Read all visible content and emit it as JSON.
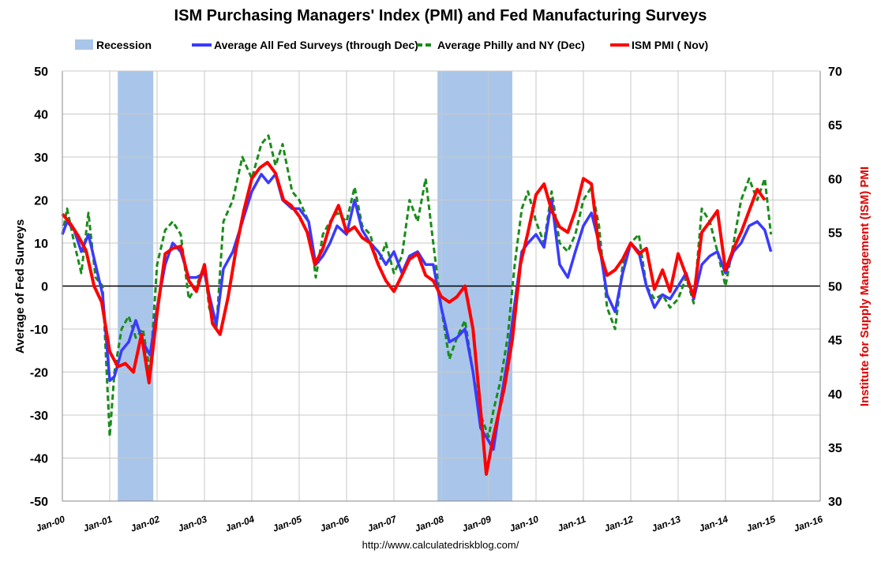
{
  "chart_data": {
    "type": "line",
    "title": "ISM Purchasing Managers' Index (PMI) and Fed Manufacturing Surveys",
    "ylabel": "Average of Fed Surveys",
    "y2label": "Institute for Supply Management (ISM) PMI",
    "source": "http://www.calculatedriskblog.com/",
    "ylim": [
      -50,
      50
    ],
    "y2lim": [
      30,
      70
    ],
    "xlim": [
      2000,
      2016
    ],
    "yticks": [
      "50",
      "40",
      "30",
      "20",
      "10",
      "0",
      "-10",
      "-20",
      "-30",
      "-40",
      "-50"
    ],
    "y2ticks": [
      "70",
      "65",
      "60",
      "55",
      "50",
      "45",
      "40",
      "35",
      "30"
    ],
    "xticks": [
      "Jan-00",
      "Jan-01",
      "Jan-02",
      "Jan-03",
      "Jan-04",
      "Jan-05",
      "Jan-06",
      "Jan-07",
      "Jan-08",
      "Jan-09",
      "Jan-10",
      "Jan-11",
      "Jan-12",
      "Jan-13",
      "Jan-14",
      "Jan-15",
      "Jan-16"
    ],
    "grid": true,
    "legend_position": "top",
    "legend": [
      "Recession",
      "Average All Fed Surveys (through Dec)",
      "Average Philly and NY (Dec)",
      "ISM PMI ( Nov)"
    ],
    "recessions": [
      [
        2001.17,
        2001.92
      ],
      [
        2007.92,
        2009.5
      ]
    ],
    "colors": {
      "recession": "#a9c6ea",
      "fed": "#3a3aff",
      "philly": "#1a8c1a",
      "ism": "#ff0000"
    },
    "series": [
      {
        "name": "Average All Fed Surveys (through Dec)",
        "axis": "left",
        "x": [
          2000,
          2000.1,
          2000.25,
          2000.4,
          2000.55,
          2000.7,
          2000.85,
          2001,
          2001.1,
          2001.25,
          2001.4,
          2001.55,
          2001.7,
          2001.85,
          2002,
          2002.17,
          2002.33,
          2002.5,
          2002.67,
          2002.83,
          2003,
          2003.1,
          2003.25,
          2003.4,
          2003.6,
          2003.8,
          2004,
          2004.2,
          2004.35,
          2004.5,
          2004.65,
          2004.85,
          2005,
          2005.2,
          2005.35,
          2005.5,
          2005.65,
          2005.8,
          2006,
          2006.17,
          2006.33,
          2006.5,
          2006.67,
          2006.83,
          2007,
          2007.17,
          2007.33,
          2007.5,
          2007.67,
          2007.83,
          2008,
          2008.17,
          2008.33,
          2008.5,
          2008.67,
          2008.83,
          2009,
          2009.1,
          2009.25,
          2009.4,
          2009.55,
          2009.7,
          2009.83,
          2010,
          2010.17,
          2010.33,
          2010.5,
          2010.67,
          2010.83,
          2011,
          2011.17,
          2011.33,
          2011.5,
          2011.67,
          2011.83,
          2012,
          2012.17,
          2012.33,
          2012.5,
          2012.67,
          2012.83,
          2013,
          2013.17,
          2013.33,
          2013.5,
          2013.67,
          2013.83,
          2014,
          2014.17,
          2014.33,
          2014.5,
          2014.67,
          2014.83,
          2014.96
        ],
        "y": [
          12,
          15,
          13,
          8,
          12,
          5,
          -2,
          -22,
          -21,
          -15,
          -13,
          -8,
          -13,
          -16,
          -5,
          5,
          10,
          8,
          2,
          2,
          3,
          -2,
          -9,
          4,
          8,
          15,
          22,
          26,
          24,
          26,
          20,
          18,
          18,
          15,
          5,
          7,
          10,
          14,
          12,
          20,
          13,
          10,
          8,
          5,
          8,
          3,
          7,
          8,
          5,
          5,
          -5,
          -13,
          -12,
          -10,
          -20,
          -33,
          -36,
          -38,
          -27,
          -17,
          -4,
          8,
          10,
          12,
          9,
          20,
          5,
          2,
          8,
          14,
          17,
          10,
          -2,
          -6,
          3,
          10,
          8,
          0,
          -5,
          -2,
          -3,
          0,
          3,
          -3,
          5,
          7,
          8,
          3,
          8,
          10,
          14,
          15,
          13,
          8
        ]
      },
      {
        "name": "Average Philly and NY (Dec)",
        "axis": "left",
        "x": [
          2000,
          2000.1,
          2000.25,
          2000.4,
          2000.55,
          2000.7,
          2000.85,
          2001,
          2001.1,
          2001.25,
          2001.4,
          2001.55,
          2001.7,
          2001.85,
          2002,
          2002.17,
          2002.33,
          2002.5,
          2002.67,
          2002.83,
          2003,
          2003.1,
          2003.25,
          2003.4,
          2003.6,
          2003.8,
          2004,
          2004.2,
          2004.35,
          2004.5,
          2004.65,
          2004.85,
          2005,
          2005.2,
          2005.35,
          2005.5,
          2005.65,
          2005.8,
          2006,
          2006.17,
          2006.33,
          2006.5,
          2006.67,
          2006.83,
          2007,
          2007.17,
          2007.33,
          2007.5,
          2007.67,
          2007.83,
          2008,
          2008.17,
          2008.33,
          2008.5,
          2008.67,
          2008.83,
          2009,
          2009.1,
          2009.25,
          2009.4,
          2009.55,
          2009.7,
          2009.83,
          2010,
          2010.17,
          2010.33,
          2010.5,
          2010.67,
          2010.83,
          2011,
          2011.17,
          2011.33,
          2011.5,
          2011.67,
          2011.83,
          2012,
          2012.17,
          2012.33,
          2012.5,
          2012.67,
          2012.83,
          2013,
          2013.17,
          2013.33,
          2013.5,
          2013.67,
          2013.83,
          2014,
          2014.17,
          2014.33,
          2014.5,
          2014.67,
          2014.83,
          2014.96
        ],
        "y": [
          12,
          18,
          10,
          3,
          17,
          2,
          0,
          -35,
          -20,
          -10,
          -7,
          -12,
          -10,
          -20,
          5,
          13,
          15,
          12,
          -3,
          0,
          5,
          -5,
          -10,
          15,
          20,
          30,
          25,
          33,
          35,
          28,
          33,
          22,
          20,
          15,
          2,
          12,
          15,
          17,
          15,
          23,
          14,
          12,
          5,
          10,
          3,
          7,
          20,
          15,
          25,
          10,
          -5,
          -17,
          -12,
          -8,
          -20,
          -30,
          -35,
          -29,
          -22,
          -12,
          5,
          18,
          22,
          15,
          10,
          22,
          10,
          8,
          12,
          20,
          23,
          14,
          -5,
          -10,
          5,
          10,
          12,
          0,
          -3,
          -2,
          -5,
          -3,
          2,
          -4,
          18,
          15,
          8,
          0,
          10,
          20,
          25,
          20,
          25,
          12
        ]
      },
      {
        "name": "ISM PMI ( Nov)",
        "axis": "right",
        "x": [
          2000,
          2000.17,
          2000.33,
          2000.5,
          2000.67,
          2000.83,
          2001,
          2001.17,
          2001.33,
          2001.5,
          2001.67,
          2001.83,
          2002,
          2002.17,
          2002.33,
          2002.5,
          2002.67,
          2002.83,
          2003,
          2003.17,
          2003.33,
          2003.5,
          2003.67,
          2003.83,
          2004,
          2004.17,
          2004.33,
          2004.5,
          2004.67,
          2004.83,
          2005,
          2005.17,
          2005.33,
          2005.5,
          2005.67,
          2005.83,
          2006,
          2006.17,
          2006.33,
          2006.5,
          2006.67,
          2006.83,
          2007,
          2007.17,
          2007.33,
          2007.5,
          2007.67,
          2007.83,
          2008,
          2008.17,
          2008.33,
          2008.5,
          2008.67,
          2008.83,
          2008.95,
          2009.1,
          2009.33,
          2009.5,
          2009.67,
          2009.83,
          2010,
          2010.17,
          2010.33,
          2010.5,
          2010.67,
          2010.83,
          2011,
          2011.17,
          2011.33,
          2011.5,
          2011.67,
          2011.83,
          2012,
          2012.17,
          2012.33,
          2012.5,
          2012.67,
          2012.83,
          2013,
          2013.17,
          2013.33,
          2013.5,
          2013.67,
          2013.83,
          2014,
          2014.17,
          2014.33,
          2014.5,
          2014.67,
          2014.83
        ],
        "y": [
          56.7,
          55.8,
          54.7,
          53.3,
          50,
          48.5,
          43.9,
          42.5,
          42.8,
          42,
          45.5,
          41,
          47.5,
          53,
          53.5,
          53.7,
          50.5,
          49.5,
          52,
          46.5,
          45.5,
          49,
          53.5,
          57,
          60,
          61,
          61.5,
          60.5,
          58,
          57.5,
          56.5,
          55,
          52,
          53.5,
          56,
          57.5,
          55,
          55.5,
          54.5,
          54,
          52,
          50.5,
          49.5,
          51,
          52.5,
          53,
          51,
          50.5,
          49,
          48.5,
          49,
          50,
          46,
          38.5,
          32.5,
          36,
          40.5,
          45,
          52,
          55,
          58.5,
          59.5,
          57,
          55.5,
          55,
          57,
          60,
          59.5,
          53.5,
          51,
          51.5,
          52.5,
          54,
          53,
          53.5,
          49.7,
          51.5,
          49.5,
          53,
          51,
          49,
          55,
          56,
          57,
          51.5,
          53.5,
          55,
          57,
          59,
          58
        ]
      }
    ]
  }
}
